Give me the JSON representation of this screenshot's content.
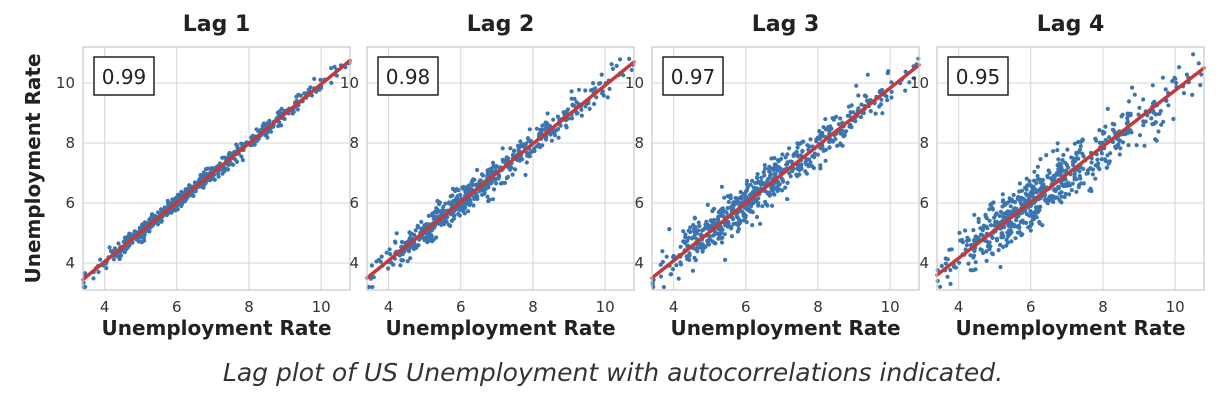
{
  "caption": "Lag plot of US Unemployment with autocorrelations indicated.",
  "colors": {
    "points": "#3b75af",
    "fit_line": "#c23b3b",
    "grid": "#d5d5d5",
    "frame": "#c8c8c8"
  },
  "chart_data": [
    {
      "type": "scatter",
      "title": "Lag 1",
      "xlabel": "Unemployment Rate",
      "ylabel": "Unemployment Rate",
      "annotation": "0.99",
      "xlim": [
        3.4,
        10.8
      ],
      "ylim": [
        3.1,
        11.2
      ],
      "xticks": [
        4,
        6,
        8,
        10
      ],
      "yticks": [
        4,
        6,
        8,
        10
      ],
      "fit": {
        "x": [
          3.4,
          10.8
        ],
        "y": [
          3.45,
          10.75
        ]
      },
      "spread": 0.12,
      "grid": true
    },
    {
      "type": "scatter",
      "title": "Lag 2",
      "xlabel": "Unemployment Rate",
      "ylabel": "",
      "annotation": "0.98",
      "xlim": [
        3.4,
        10.8
      ],
      "ylim": [
        3.1,
        11.2
      ],
      "xticks": [
        4,
        6,
        8,
        10
      ],
      "yticks": [
        4,
        6,
        8,
        10
      ],
      "fit": {
        "x": [
          3.4,
          10.8
        ],
        "y": [
          3.5,
          10.7
        ]
      },
      "spread": 0.22,
      "grid": true
    },
    {
      "type": "scatter",
      "title": "Lag 3",
      "xlabel": "Unemployment Rate",
      "ylabel": "",
      "annotation": "0.97",
      "xlim": [
        3.4,
        10.8
      ],
      "ylim": [
        3.1,
        11.2
      ],
      "xticks": [
        4,
        6,
        8,
        10
      ],
      "yticks": [
        4,
        6,
        8,
        10
      ],
      "fit": {
        "x": [
          3.4,
          10.8
        ],
        "y": [
          3.5,
          10.6
        ]
      },
      "spread": 0.32,
      "grid": true
    },
    {
      "type": "scatter",
      "title": "Lag 4",
      "xlabel": "Unemployment Rate",
      "ylabel": "",
      "annotation": "0.95",
      "xlim": [
        3.4,
        10.8
      ],
      "ylim": [
        3.1,
        11.2
      ],
      "xticks": [
        4,
        6,
        8,
        10
      ],
      "yticks": [
        4,
        6,
        8,
        10
      ],
      "fit": {
        "x": [
          3.4,
          10.8
        ],
        "y": [
          3.6,
          10.5
        ]
      },
      "spread": 0.42,
      "grid": true
    }
  ]
}
